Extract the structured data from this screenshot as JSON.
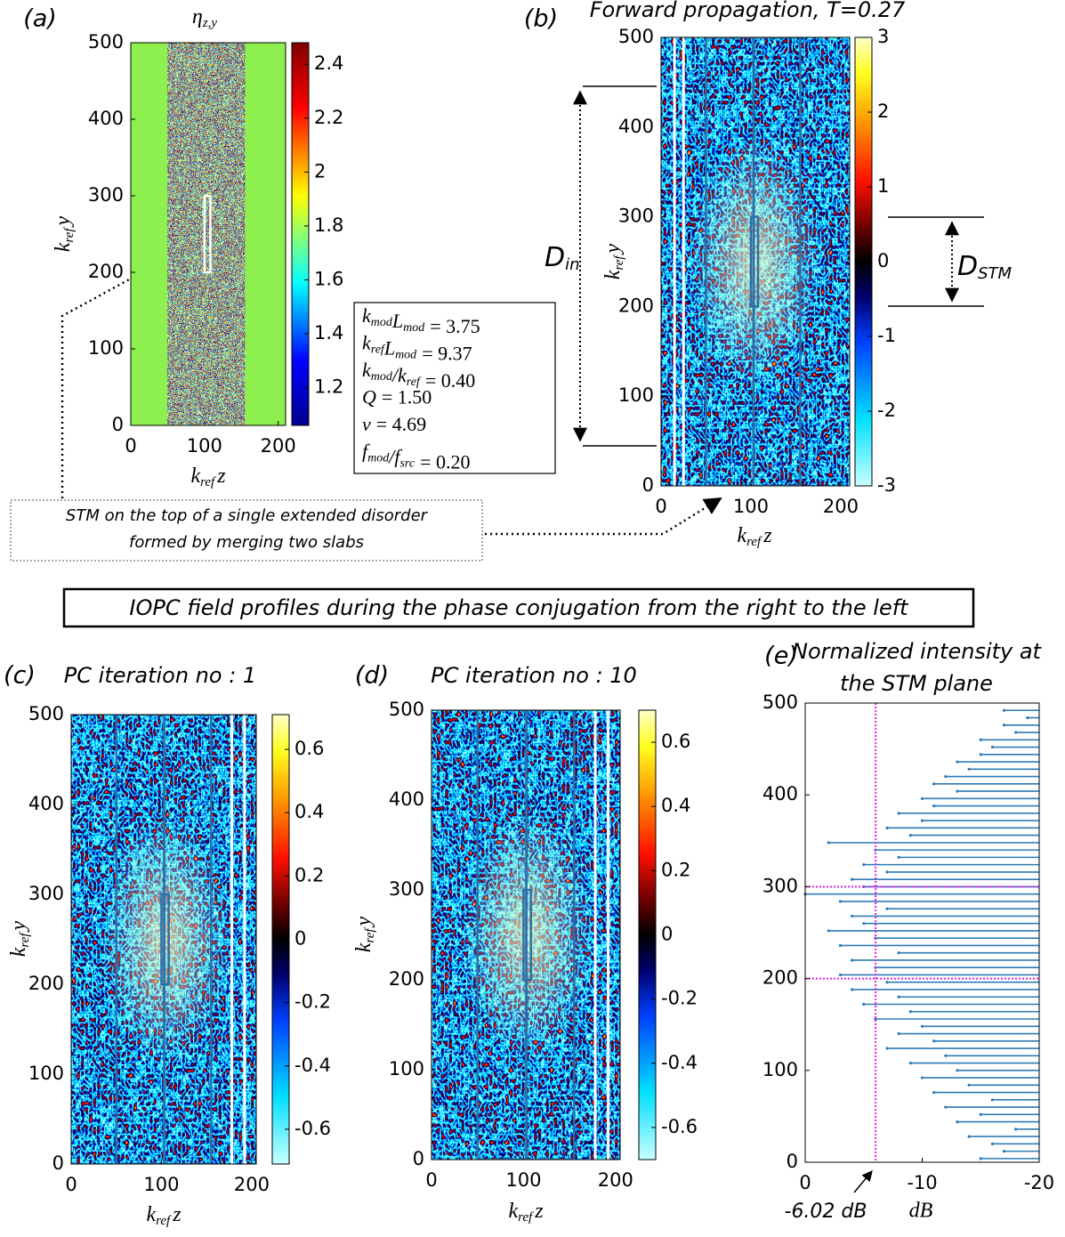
{
  "chart_data": [
    {
      "type": "heatmap",
      "panel_label": "(a)",
      "title": {
        "base": "η",
        "sub": "z,y"
      },
      "xlabel": {
        "base": "k",
        "sub": "ref",
        "var": "z"
      },
      "ylabel": {
        "base": "k",
        "sub": "ref",
        "var": "y"
      },
      "xlim": [
        0,
        210
      ],
      "ylim": [
        0,
        500
      ],
      "xticks": [
        0,
        100,
        200
      ],
      "yticks": [
        0,
        100,
        200,
        300,
        400,
        500
      ],
      "colormap": "jet",
      "clim": [
        1.06,
        2.48
      ],
      "cticks": [
        1.2,
        1.4,
        1.6,
        1.8,
        2,
        2.2,
        2.4
      ],
      "disorder_region": [
        50,
        155
      ],
      "stm_box": {
        "z": [
          100,
          108
        ],
        "y": [
          200,
          300
        ],
        "color": "#ffffff"
      }
    },
    {
      "type": "heatmap",
      "panel_label": "(b)",
      "title": "Forward propagation, T=0.27",
      "xlabel": {
        "base": "k",
        "sub": "ref",
        "var": "z"
      },
      "ylabel": {
        "base": "k",
        "sub": "ref",
        "var": "y"
      },
      "xlim": [
        0,
        210
      ],
      "ylim": [
        0,
        500
      ],
      "xticks": [
        0,
        100,
        200
      ],
      "yticks": [
        0,
        100,
        200,
        300,
        400,
        500
      ],
      "colormap": "hotcold",
      "clim": [
        -3,
        3
      ],
      "cticks": [
        -3,
        -2,
        -1,
        0,
        1,
        2,
        3
      ],
      "slabs": [
        [
          50,
          103
        ],
        [
          103,
          155
        ]
      ],
      "slab_color": "#2a6fa8",
      "white_lines": [
        15,
        25
      ],
      "stm_box": {
        "z": [
          100,
          108
        ],
        "y": [
          200,
          300
        ],
        "color": "#2a6fa8"
      }
    },
    {
      "type": "heatmap",
      "panel_label": "(c)",
      "title": "PC iteration no : 1",
      "xlabel": {
        "base": "k",
        "sub": "ref",
        "var": "z"
      },
      "ylabel": {
        "base": "k",
        "sub": "ref",
        "var": "y"
      },
      "xlim": [
        0,
        205
      ],
      "ylim": [
        0,
        500
      ],
      "xticks": [
        0,
        100,
        200
      ],
      "yticks": [
        0,
        100,
        200,
        300,
        400,
        500
      ],
      "colormap": "hotcold",
      "clim": [
        -0.71,
        0.71
      ],
      "cticks": [
        -0.6,
        -0.4,
        -0.2,
        0,
        0.2,
        0.4,
        0.6
      ],
      "slabs": [
        [
          50,
          103
        ],
        [
          103,
          155
        ]
      ],
      "slab_color": "#2a6fa8",
      "white_lines": [
        178,
        192
      ],
      "stm_box": {
        "z": [
          100,
          108
        ],
        "y": [
          200,
          300
        ],
        "color": "#2a6fa8"
      }
    },
    {
      "type": "heatmap",
      "panel_label": "(d)",
      "title": "PC iteration no : 10",
      "xlabel": {
        "base": "k",
        "sub": "ref",
        "var": "z"
      },
      "ylabel": {
        "base": "k",
        "sub": "ref",
        "var": "y"
      },
      "xlim": [
        0,
        205
      ],
      "ylim": [
        0,
        500
      ],
      "xticks": [
        0,
        100,
        200
      ],
      "yticks": [
        0,
        100,
        200,
        300,
        400,
        500
      ],
      "colormap": "hotcold",
      "clim": [
        -0.7,
        0.7
      ],
      "cticks": [
        -0.6,
        -0.4,
        -0.2,
        0,
        0.2,
        0.4,
        0.6
      ],
      "slabs": [
        [
          50,
          103
        ],
        [
          103,
          155
        ]
      ],
      "slab_color": "#2a6fa8",
      "white_lines": [
        178,
        192
      ],
      "stm_box": {
        "z": [
          100,
          108
        ],
        "y": [
          200,
          300
        ],
        "color": "#2a6fa8"
      }
    },
    {
      "type": "hbar",
      "panel_label": "(e)",
      "title": [
        "Normalized intensity at",
        "the STM plane"
      ],
      "xlabel": "dB",
      "xlim": [
        0,
        -20
      ],
      "ylim": [
        0,
        500
      ],
      "xticks": [
        0,
        -10,
        -20
      ],
      "yticks": [
        0,
        100,
        200,
        300,
        400,
        500
      ],
      "color": "#2c7bb6",
      "baseline": -20,
      "y": [
        4,
        12,
        20,
        28,
        36,
        44,
        52,
        60,
        68,
        76,
        84,
        92,
        100,
        108,
        116,
        124,
        132,
        140,
        148,
        156,
        164,
        172,
        180,
        188,
        196,
        204,
        212,
        220,
        228,
        236,
        244,
        252,
        260,
        268,
        276,
        284,
        292,
        300,
        308,
        316,
        324,
        332,
        340,
        348,
        356,
        364,
        372,
        380,
        388,
        396,
        404,
        412,
        420,
        428,
        436,
        444,
        452,
        460,
        468,
        476,
        484,
        492
      ],
      "values": [
        -15,
        -17,
        -16,
        -14,
        -18,
        -13,
        -15,
        -12,
        -16,
        -11,
        -14,
        -10,
        -13,
        -9,
        -12,
        -7,
        -11,
        -8,
        -10,
        -6,
        -9,
        -5,
        -8,
        -4,
        -7,
        -3,
        -6,
        -4,
        -8,
        -3,
        -6,
        -2,
        -5,
        -4,
        -7,
        -3,
        0,
        -5,
        -4,
        -7,
        -5,
        -8,
        -6,
        -2,
        -9,
        -7,
        -10,
        -8,
        -11,
        -10,
        -13,
        -11,
        -12,
        -14,
        -13,
        -15,
        -16,
        -15,
        -18,
        -17,
        -19,
        -17
      ],
      "ref_x": -6.02,
      "ref_y": [
        200,
        300
      ],
      "ref_color": "#e020e0",
      "ref_label": "-6.02 dB"
    }
  ],
  "annotations": {
    "params": [
      {
        "terms": [
          {
            "base": "k",
            "sub": "mod"
          },
          {
            "base": "L",
            "sub": "mod"
          }
        ],
        "rhs": "= 3.75"
      },
      {
        "terms": [
          {
            "base": "k",
            "sub": "ref"
          },
          {
            "base": "L",
            "sub": "mod"
          }
        ],
        "rhs": "= 9.37"
      },
      {
        "terms": [
          {
            "base": "k",
            "sub": "mod"
          },
          {
            "base": "/k",
            "sub": "ref"
          }
        ],
        "rhs": "= 0.40"
      },
      {
        "terms": [
          {
            "base": "Q",
            "sub": ""
          }
        ],
        "rhs": "= 1.50"
      },
      {
        "terms": [
          {
            "base": "ν",
            "sub": ""
          }
        ],
        "rhs": "= 4.69"
      },
      {
        "terms": [
          {
            "base": "f",
            "sub": "mod"
          },
          {
            "base": "/f",
            "sub": "src"
          }
        ],
        "rhs": "= 0.20"
      }
    ],
    "stm_note": [
      "STM on the top of a single extended disorder",
      "formed by merging two slabs"
    ],
    "banner": "IOPC field profiles during the phase conjugation from the right to the left",
    "d_in": {
      "base": "D",
      "sub": "in"
    },
    "d_stm": {
      "base": "D",
      "sub": "STM"
    }
  }
}
